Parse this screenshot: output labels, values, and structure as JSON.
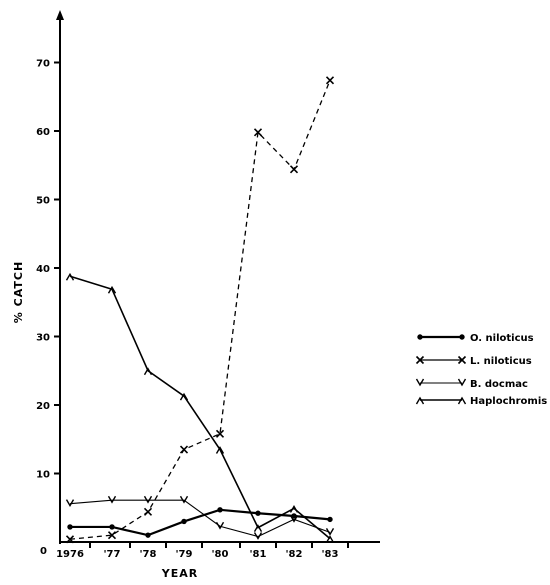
{
  "chart_data": {
    "type": "line",
    "title": "",
    "xlabel": "YEAR",
    "ylabel": "% CATCH",
    "x": [
      "1976",
      "'77",
      "'78",
      "'79",
      "'80",
      "'81",
      "'82",
      "'83"
    ],
    "ylim": [
      0,
      80
    ],
    "yticks": [
      0,
      10,
      20,
      30,
      40,
      50,
      60,
      70,
      80
    ],
    "grid": false,
    "legend_position": "right",
    "series": [
      {
        "name": "O. niloticus",
        "marker": "dot",
        "dashed": false,
        "x": [
          "1976",
          "'77",
          "'78",
          "'79",
          "'80",
          "'81",
          "'82",
          "'83"
        ],
        "values": [
          2.2,
          2.2,
          1.0,
          3.0,
          4.7,
          4.2,
          3.8,
          3.3
        ]
      },
      {
        "name": "L. niloticus",
        "marker": "x",
        "dashed": true,
        "x": [
          "1976",
          "'77",
          "'78",
          "'79",
          "'80",
          "'81",
          "'82",
          "'83"
        ],
        "values": [
          0.4,
          1.0,
          4.4,
          13.5,
          15.8,
          59.8,
          54.4,
          67.4
        ]
      },
      {
        "name": "B. docmac",
        "marker": "v",
        "dashed": false,
        "x": [
          "1976",
          "'77",
          "'78",
          "'79",
          "'80",
          "'81",
          "'82",
          "'83"
        ],
        "values": [
          5.6,
          6.1,
          6.1,
          6.1,
          2.3,
          0.8,
          3.3,
          1.4
        ]
      },
      {
        "name": "Haplochromis",
        "marker": "lambda",
        "dashed": false,
        "x": [
          "1976",
          "'77",
          "'78",
          "'79",
          "'80",
          "'81",
          "'82",
          "'83"
        ],
        "values": [
          38.8,
          36.9,
          25.0,
          21.3,
          13.5,
          2.1,
          4.9,
          0.5
        ]
      }
    ]
  }
}
